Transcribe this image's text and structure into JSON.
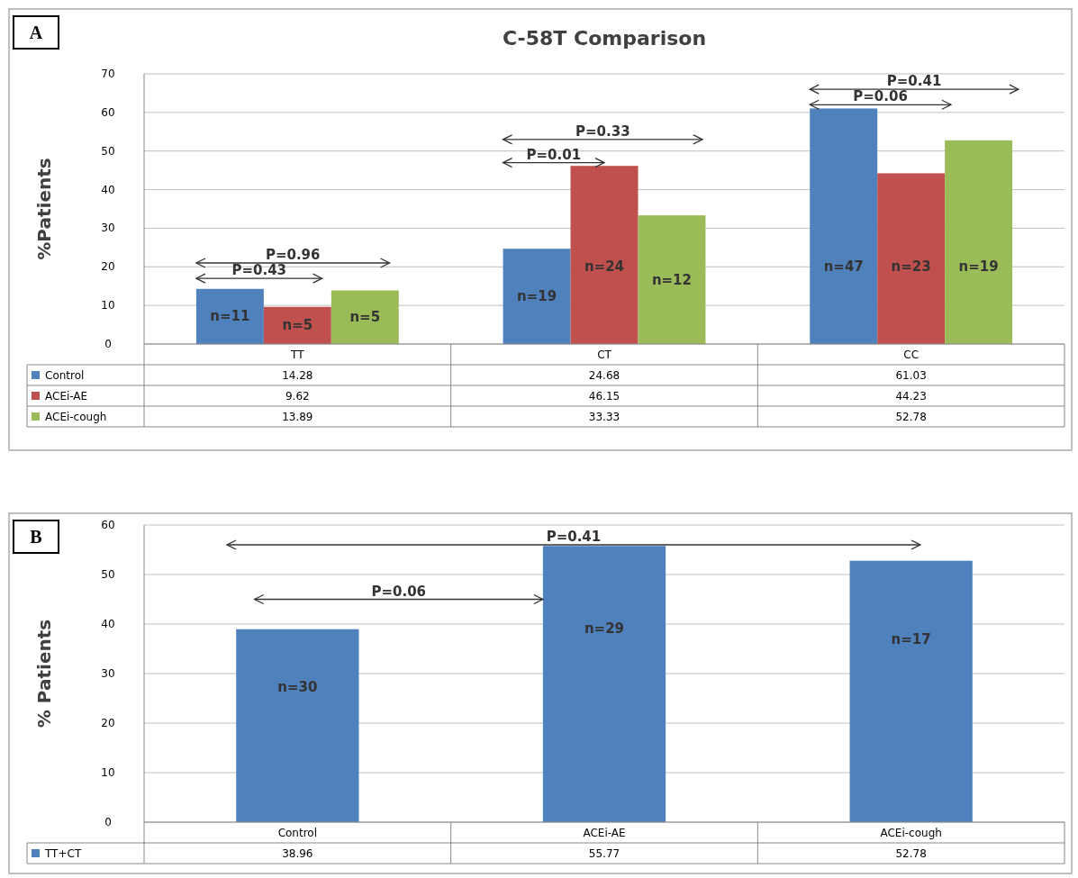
{
  "chart_data": [
    {
      "type": "bar",
      "title": "C-58T Comparison",
      "ylabel": "%Patients",
      "categories": [
        "TT",
        "CT",
        "CC"
      ],
      "series": [
        {
          "name": "Control",
          "color": "#4f81bd",
          "values": [
            14.28,
            24.68,
            61.03
          ]
        },
        {
          "name": "ACEi-AE",
          "color": "#c0504d",
          "values": [
            9.62,
            46.15,
            44.23
          ]
        },
        {
          "name": "ACEi-cough",
          "color": "#9bbb59",
          "values": [
            13.89,
            33.33,
            52.78
          ]
        }
      ],
      "ylim": [
        0,
        70
      ],
      "yticks": [
        0,
        10,
        20,
        30,
        40,
        50,
        60,
        70
      ],
      "grid": "y",
      "legend": "bottom",
      "data_labels": true,
      "annotations": [
        "A",
        "P=0.96",
        "P=0.43",
        "P=0.33",
        "P=0.01",
        "P=0.41",
        "P=0.06",
        "n=11",
        "n=5",
        "n=5",
        "n=19",
        "n=24",
        "n=12",
        "n=47",
        "n=23",
        "n=19"
      ]
    },
    {
      "type": "bar",
      "ylabel": "% Patients",
      "categories": [
        "Control",
        "ACEi-AE",
        "ACEi-cough"
      ],
      "series": [
        {
          "name": "TT+CT",
          "color": "#4f81bd",
          "values": [
            38.96,
            55.77,
            52.78
          ]
        }
      ],
      "ylim": [
        0,
        60
      ],
      "yticks": [
        0,
        10,
        20,
        30,
        40,
        50,
        60
      ],
      "grid": "y",
      "legend": "bottom",
      "data_labels": true,
      "annotations": [
        "B",
        "P=0.41",
        "P=0.06",
        "n=30",
        "n=29",
        "n=17"
      ]
    }
  ]
}
